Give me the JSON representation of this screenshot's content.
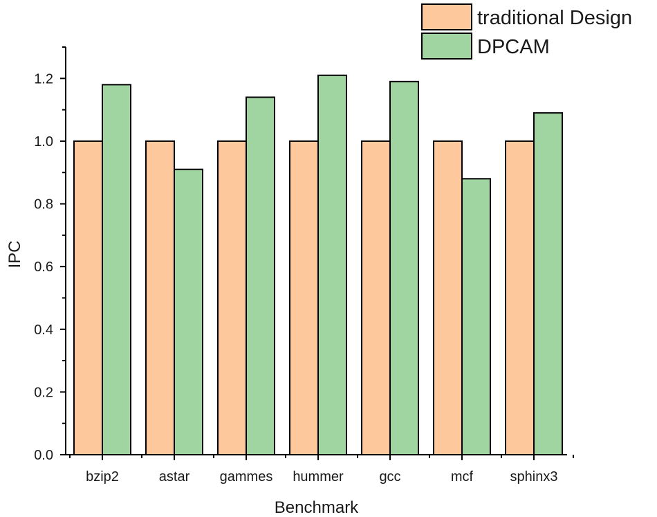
{
  "chart_data": {
    "type": "bar",
    "title": "",
    "xlabel": "Benchmark",
    "ylabel": "IPC",
    "categories": [
      "bzip2",
      "astar",
      "gammes",
      "hummer",
      "gcc",
      "mcf",
      "sphinx3"
    ],
    "series": [
      {
        "name": "traditional Design",
        "color": "#fcc89c",
        "values": [
          1.0,
          1.0,
          1.0,
          1.0,
          1.0,
          1.0,
          1.0
        ]
      },
      {
        "name": "DPCAM",
        "color": "#a0d4a0",
        "values": [
          1.18,
          0.91,
          1.14,
          1.21,
          1.19,
          0.88,
          1.09
        ]
      }
    ],
    "ylim": [
      0,
      1.3
    ],
    "yticks": [
      "0.0",
      "0.2",
      "0.4",
      "0.6",
      "0.8",
      "1.0",
      "1.2"
    ],
    "ytick_values": [
      0,
      0.2,
      0.4,
      0.6,
      0.8,
      1.0,
      1.2
    ],
    "grid": false,
    "legend_position": "top-right"
  }
}
